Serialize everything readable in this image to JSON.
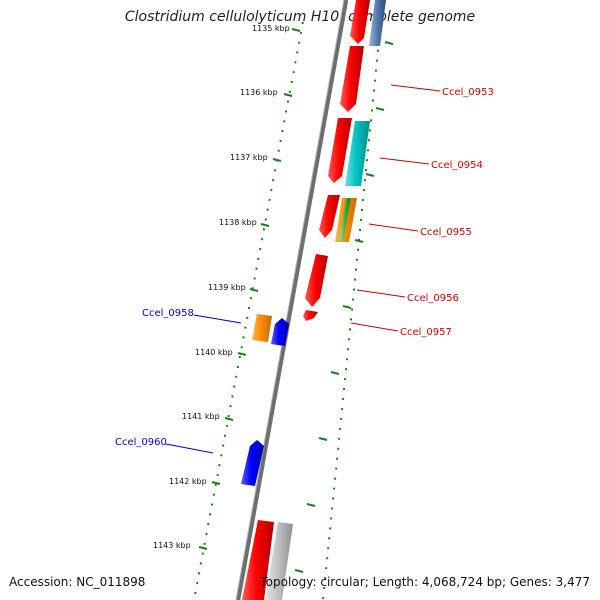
{
  "title": "Clostridium cellulolyticum H10, complete genome",
  "footer": {
    "accession": "Accession: NC_011898",
    "stats": "Topology: circular; Length: 4,068,724 bp; Genes: 3,477"
  },
  "ticks": [
    "1135 kbp",
    "1136 kbp",
    "1137 kbp",
    "1138 kbp",
    "1139 kbp",
    "1140 kbp",
    "1141 kbp",
    "1142 kbp",
    "1143 kbp"
  ],
  "gene_labels": {
    "forward": [
      "Ccel_0953",
      "Ccel_0954",
      "Ccel_0955",
      "Ccel_0956",
      "Ccel_0957"
    ],
    "reverse": [
      "Ccel_0958",
      "Ccel_0960"
    ]
  },
  "colors": {
    "backbone": "#808080",
    "cds_red": "#ff0000",
    "cds_blue": "#0000ff",
    "cds_cyan": "#00c8c8",
    "cds_orange": "#ff8c00",
    "cds_green": "#50c850",
    "cds_gray": "#bdbdbd",
    "tick_green": "#1a7f1a",
    "label_forward": "#cc0000",
    "label_reverse": "#0000cc"
  }
}
